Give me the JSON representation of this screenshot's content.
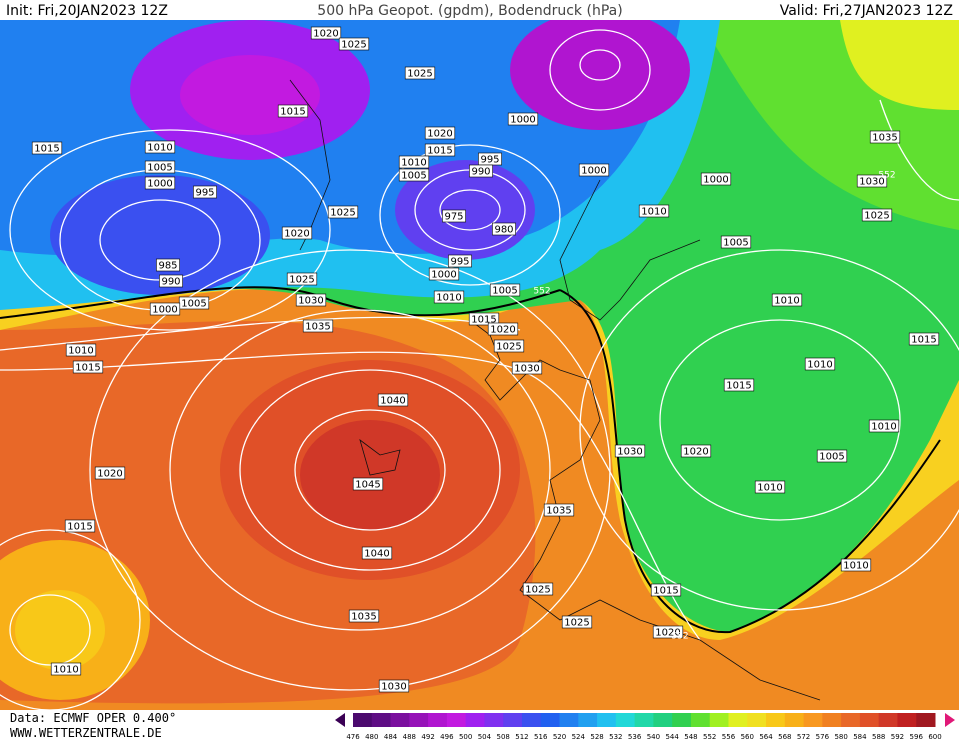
{
  "header": {
    "init": "Init: Fri,20JAN2023 12Z",
    "title": "500 hPa Geopot. (gpdm), Bodendruck (hPa)",
    "valid": "Valid: Fri,27JAN2023 12Z"
  },
  "isobar_labels": [
    "1020",
    "1025",
    "1025",
    "1015",
    "1000",
    "1015",
    "1010",
    "1020",
    "1015",
    "995",
    "1010",
    "990",
    "1005",
    "1005",
    "1000",
    "1000",
    "1000",
    "1035",
    "1030",
    "995",
    "1025",
    "975",
    "1010",
    "1025",
    "1020",
    "980",
    "1005",
    "985",
    "995",
    "1000",
    "990",
    "1025",
    "1005",
    "1010",
    "1005",
    "1030",
    "1000",
    "1010",
    "1015",
    "1020",
    "1035",
    "1025",
    "1015",
    "1010",
    "1015",
    "1010",
    "1030",
    "1015",
    "1040",
    "1010",
    "1030",
    "1020",
    "1005",
    "1020",
    "1045",
    "1010",
    "1035",
    "1015",
    "1040",
    "1010",
    "1025",
    "1015",
    "1035",
    "1025",
    "1020",
    "1010",
    "1030"
  ],
  "height_labels": [
    "552",
    "552",
    "552"
  ],
  "footer": {
    "data": "Data: ECMWF OPER 0.400°",
    "site": "WWW.WETTERZENTRALE.DE"
  },
  "colorbar": {
    "labels": [
      476,
      480,
      484,
      488,
      492,
      496,
      500,
      504,
      508,
      512,
      516,
      520,
      524,
      528,
      532,
      536,
      540,
      544,
      548,
      552,
      556,
      560,
      564,
      568,
      572,
      576,
      580,
      584,
      588,
      592,
      596,
      600
    ],
    "colors": [
      "#4b0a6e",
      "#5e0d84",
      "#7a0f9e",
      "#9612b8",
      "#b015d0",
      "#c21ae0",
      "#a020f0",
      "#8030f0",
      "#6040f0",
      "#3a50f0",
      "#2060f0",
      "#2080f0",
      "#20a0f0",
      "#20c0f0",
      "#20d8d8",
      "#20d8a8",
      "#20d080",
      "#30d050",
      "#60e030",
      "#a0f020",
      "#e0f020",
      "#f0e020",
      "#f8c818",
      "#f8b018",
      "#f89820",
      "#f08020",
      "#e86828",
      "#e05028",
      "#d03828",
      "#c02020",
      "#a01820"
    ]
  }
}
